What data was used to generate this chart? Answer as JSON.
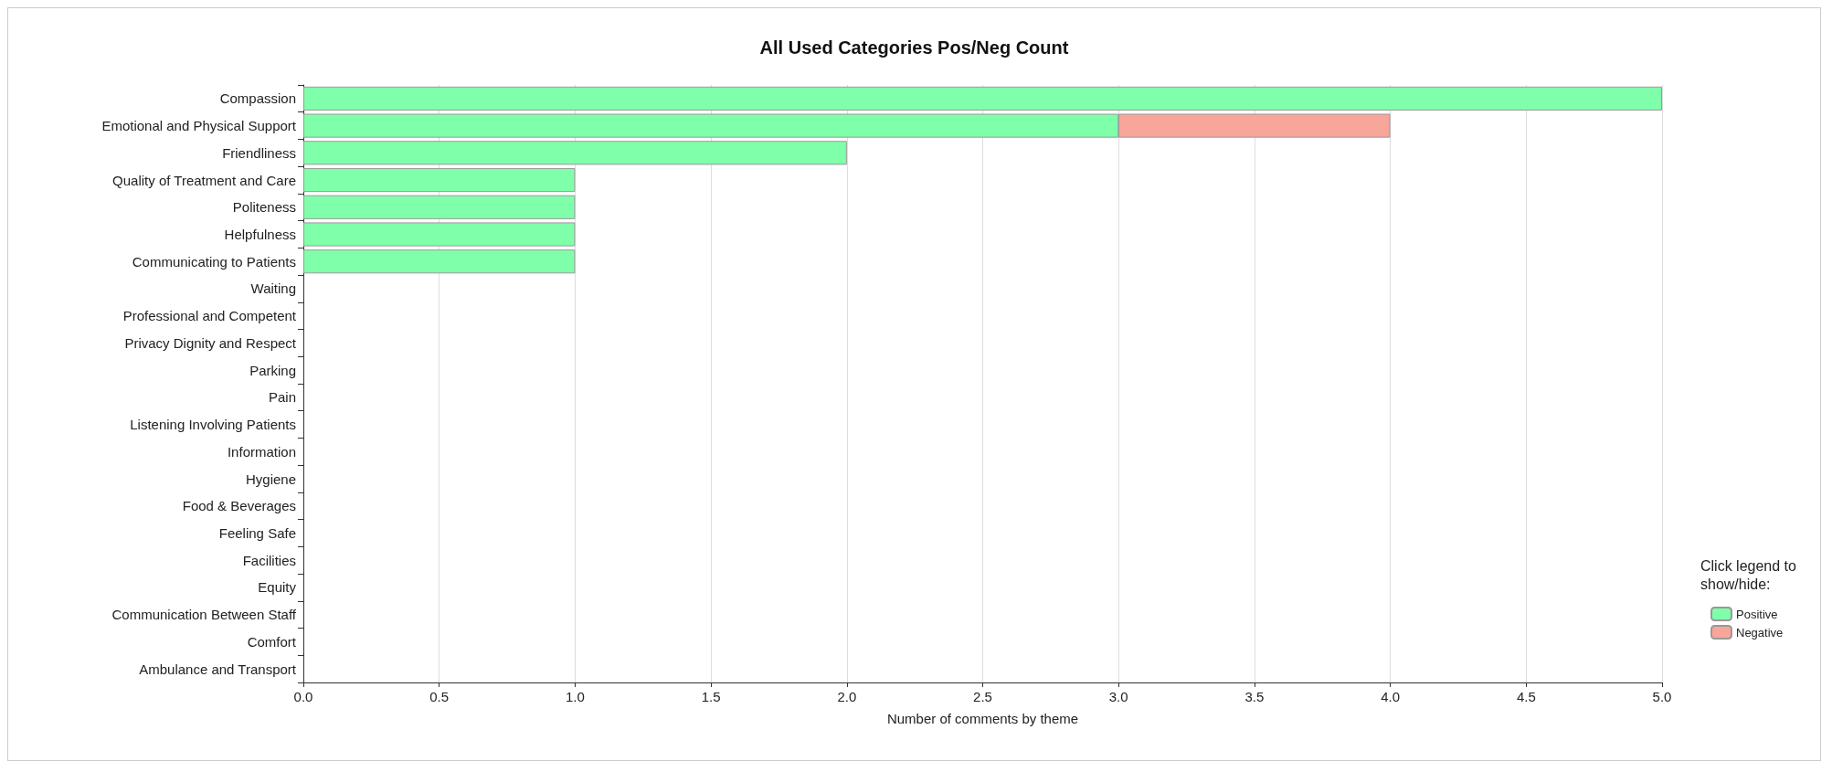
{
  "chart_data": {
    "type": "bar",
    "orientation": "horizontal",
    "stacked": true,
    "title": "All Used Categories Pos/Neg Count",
    "xlabel": "Number of comments by theme",
    "legend_title": "Click legend to show/hide:",
    "legend": "bottom right",
    "grid": "x",
    "categories": [
      "Compassion",
      "Emotional and Physical Support",
      "Friendliness",
      "Quality of Treatment and Care",
      "Politeness",
      "Helpfulness",
      "Communicating to Patients",
      "Waiting",
      "Professional and Competent",
      "Privacy Dignity and Respect",
      "Parking",
      "Pain",
      "Listening Involving Patients",
      "Information",
      "Hygiene",
      "Food & Beverages",
      "Feeling Safe",
      "Facilities",
      "Equity",
      "Communication Between Staff",
      "Comfort",
      "Ambulance and Transport"
    ],
    "series": [
      {
        "name": "Positive",
        "color": "#80ffaa",
        "values": [
          5,
          3,
          2,
          1,
          1,
          1,
          1,
          0,
          0,
          0,
          0,
          0,
          0,
          0,
          0,
          0,
          0,
          0,
          0,
          0,
          0,
          0
        ]
      },
      {
        "name": "Negative",
        "color": "#f8a59a",
        "values": [
          0,
          1,
          0,
          0,
          0,
          0,
          0,
          0,
          0,
          0,
          0,
          0,
          0,
          0,
          0,
          0,
          0,
          0,
          0,
          0,
          0,
          0
        ]
      }
    ],
    "xlim": [
      0,
      5
    ],
    "xticks": [
      {
        "value": 0,
        "label": "0.0"
      },
      {
        "value": 0.5,
        "label": "0.5"
      },
      {
        "value": 1,
        "label": "1.0"
      },
      {
        "value": 1.5,
        "label": "1.5"
      },
      {
        "value": 2,
        "label": "2.0"
      },
      {
        "value": 2.5,
        "label": "2.5"
      },
      {
        "value": 3,
        "label": "3.0"
      },
      {
        "value": 3.5,
        "label": "3.5"
      },
      {
        "value": 4,
        "label": "4.0"
      },
      {
        "value": 4.5,
        "label": "4.5"
      },
      {
        "value": 5,
        "label": "5.0"
      }
    ]
  }
}
